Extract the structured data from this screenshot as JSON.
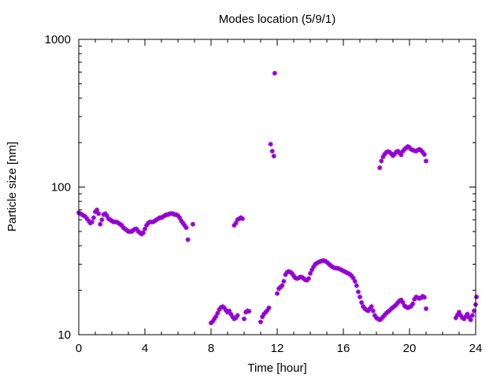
{
  "chart_data": {
    "type": "scatter",
    "title": "Modes location (5/9/1)",
    "xlabel": "Time [hour]",
    "ylabel": "Particle size [nm]",
    "xlim": [
      0,
      24
    ],
    "ylim": [
      10,
      1000
    ],
    "yscale": "log",
    "xticks": [
      "0",
      "4",
      "8",
      "12",
      "16",
      "20",
      "24"
    ],
    "yticks": [
      "10",
      "100",
      "1000"
    ],
    "grid": false,
    "legend": "none",
    "marker_color": "#9400d3",
    "series": [
      {
        "points": [
          [
            0.0,
            67
          ],
          [
            0.1,
            66
          ],
          [
            0.2,
            65
          ],
          [
            0.3,
            64
          ],
          [
            0.4,
            63
          ],
          [
            0.5,
            61
          ],
          [
            0.6,
            59
          ],
          [
            0.7,
            57
          ],
          [
            0.8,
            58
          ],
          [
            0.9,
            62
          ],
          [
            1.0,
            68
          ],
          [
            1.1,
            70
          ],
          [
            1.2,
            66
          ],
          [
            1.3,
            56
          ],
          [
            1.4,
            60
          ],
          [
            1.5,
            65
          ],
          [
            1.6,
            66
          ],
          [
            1.7,
            64
          ],
          [
            1.8,
            61
          ],
          [
            1.9,
            60
          ],
          [
            2.0,
            59
          ],
          [
            2.1,
            58
          ],
          [
            2.2,
            58
          ],
          [
            2.3,
            58
          ],
          [
            2.4,
            57
          ],
          [
            2.5,
            56
          ],
          [
            2.6,
            55
          ],
          [
            2.7,
            53
          ],
          [
            2.8,
            52
          ],
          [
            2.9,
            51
          ],
          [
            3.0,
            50
          ],
          [
            3.1,
            50
          ],
          [
            3.2,
            50
          ],
          [
            3.3,
            51
          ],
          [
            3.4,
            52
          ],
          [
            3.5,
            52
          ],
          [
            3.6,
            50
          ],
          [
            3.7,
            49
          ],
          [
            3.8,
            48
          ],
          [
            3.9,
            49
          ],
          [
            4.0,
            52
          ],
          [
            4.1,
            55
          ],
          [
            4.2,
            57
          ],
          [
            4.3,
            58
          ],
          [
            4.4,
            58
          ],
          [
            4.5,
            58
          ],
          [
            4.6,
            59
          ],
          [
            4.7,
            60
          ],
          [
            4.8,
            61
          ],
          [
            4.9,
            62
          ],
          [
            5.0,
            62
          ],
          [
            5.1,
            63
          ],
          [
            5.2,
            64
          ],
          [
            5.3,
            65
          ],
          [
            5.4,
            65
          ],
          [
            5.5,
            66
          ],
          [
            5.6,
            66
          ],
          [
            5.7,
            66
          ],
          [
            5.8,
            65
          ],
          [
            5.9,
            65
          ],
          [
            6.0,
            64
          ],
          [
            6.1,
            62
          ],
          [
            6.2,
            59
          ],
          [
            6.3,
            57
          ],
          [
            6.4,
            55
          ],
          [
            6.5,
            53
          ],
          [
            6.6,
            44
          ],
          [
            6.9,
            56
          ],
          [
            8.0,
            12
          ],
          [
            8.1,
            12.3
          ],
          [
            8.2,
            12.8
          ],
          [
            8.3,
            13.3
          ],
          [
            8.4,
            14
          ],
          [
            8.5,
            14.8
          ],
          [
            8.6,
            15.3
          ],
          [
            8.7,
            15.5
          ],
          [
            8.8,
            15.2
          ],
          [
            8.9,
            14.6
          ],
          [
            9.0,
            14.2
          ],
          [
            9.1,
            14.5
          ],
          [
            9.2,
            13.8
          ],
          [
            9.3,
            13.2
          ],
          [
            9.4,
            12.8
          ],
          [
            9.5,
            13
          ],
          [
            9.6,
            13.5
          ],
          [
            9.4,
            55
          ],
          [
            9.5,
            57
          ],
          [
            9.6,
            60
          ],
          [
            9.7,
            61
          ],
          [
            9.8,
            62
          ],
          [
            9.9,
            61
          ],
          [
            10.0,
            12.8
          ],
          [
            10.1,
            14.2
          ],
          [
            10.2,
            14.5
          ],
          [
            10.3,
            14.4
          ],
          [
            11.0,
            12.2
          ],
          [
            11.1,
            13.2
          ],
          [
            11.2,
            13.8
          ],
          [
            11.3,
            14.2
          ],
          [
            11.4,
            14.6
          ],
          [
            11.5,
            15.2
          ],
          [
            11.6,
            195
          ],
          [
            11.7,
            175
          ],
          [
            11.8,
            162
          ],
          [
            11.85,
            590
          ],
          [
            12.0,
            19
          ],
          [
            12.1,
            20.5
          ],
          [
            12.2,
            21
          ],
          [
            12.3,
            21.5
          ],
          [
            12.4,
            23
          ],
          [
            12.5,
            25.5
          ],
          [
            12.6,
            26.5
          ],
          [
            12.7,
            26.8
          ],
          [
            12.8,
            26.5
          ],
          [
            12.9,
            26
          ],
          [
            13.0,
            25
          ],
          [
            13.1,
            24.2
          ],
          [
            13.2,
            24
          ],
          [
            13.3,
            24.2
          ],
          [
            13.4,
            24.6
          ],
          [
            13.5,
            24.5
          ],
          [
            13.6,
            24
          ],
          [
            13.7,
            23.5
          ],
          [
            13.8,
            23.4
          ],
          [
            13.9,
            24
          ],
          [
            14.0,
            26
          ],
          [
            14.1,
            27.5
          ],
          [
            14.2,
            28.8
          ],
          [
            14.3,
            30
          ],
          [
            14.4,
            30.5
          ],
          [
            14.5,
            31
          ],
          [
            14.6,
            31.3
          ],
          [
            14.7,
            31.6
          ],
          [
            14.8,
            31.8
          ],
          [
            14.9,
            31.5
          ],
          [
            15.0,
            31
          ],
          [
            15.1,
            30.3
          ],
          [
            15.2,
            29.6
          ],
          [
            15.3,
            29
          ],
          [
            15.4,
            28.5
          ],
          [
            15.5,
            28.3
          ],
          [
            15.6,
            28.2
          ],
          [
            15.7,
            28.1
          ],
          [
            15.8,
            27.8
          ],
          [
            15.9,
            27.4
          ],
          [
            16.0,
            27
          ],
          [
            16.1,
            26.7
          ],
          [
            16.2,
            26.3
          ],
          [
            16.3,
            26
          ],
          [
            16.4,
            25.6
          ],
          [
            16.5,
            25
          ],
          [
            16.6,
            24.2
          ],
          [
            16.7,
            23
          ],
          [
            16.8,
            21.5
          ],
          [
            16.9,
            19.5
          ],
          [
            17.0,
            18
          ],
          [
            17.1,
            16.5
          ],
          [
            17.2,
            15.5
          ],
          [
            17.3,
            15
          ],
          [
            17.4,
            14.7
          ],
          [
            17.5,
            14.5
          ],
          [
            17.6,
            15
          ],
          [
            17.7,
            15.5
          ],
          [
            17.8,
            14.5
          ],
          [
            17.9,
            13.5
          ],
          [
            18.0,
            13
          ],
          [
            18.1,
            12.8
          ],
          [
            18.2,
            12.6
          ],
          [
            18.3,
            12.8
          ],
          [
            18.4,
            13.2
          ],
          [
            18.5,
            13.6
          ],
          [
            18.6,
            14
          ],
          [
            18.7,
            14.3
          ],
          [
            18.8,
            14.6
          ],
          [
            18.9,
            15
          ],
          [
            19.0,
            15.3
          ],
          [
            19.1,
            15.6
          ],
          [
            19.2,
            16
          ],
          [
            19.3,
            16.5
          ],
          [
            19.4,
            17
          ],
          [
            19.5,
            17.2
          ],
          [
            19.6,
            16.5
          ],
          [
            19.7,
            15.7
          ],
          [
            19.8,
            15.4
          ],
          [
            19.9,
            15.2
          ],
          [
            20.0,
            15.4
          ],
          [
            20.1,
            15.6
          ],
          [
            20.2,
            16.2
          ],
          [
            20.3,
            17.4
          ],
          [
            20.4,
            18
          ],
          [
            20.5,
            17.8
          ],
          [
            20.6,
            17.6
          ],
          [
            20.7,
            17.8
          ],
          [
            20.8,
            18.2
          ],
          [
            20.9,
            17.9
          ],
          [
            21.0,
            15
          ],
          [
            18.2,
            135
          ],
          [
            18.3,
            150
          ],
          [
            18.4,
            160
          ],
          [
            18.5,
            167
          ],
          [
            18.6,
            172
          ],
          [
            18.7,
            174
          ],
          [
            18.8,
            172
          ],
          [
            18.9,
            168
          ],
          [
            19.0,
            163
          ],
          [
            19.1,
            167
          ],
          [
            19.2,
            173
          ],
          [
            19.3,
            175
          ],
          [
            19.4,
            170
          ],
          [
            19.5,
            165
          ],
          [
            19.6,
            175
          ],
          [
            19.7,
            180
          ],
          [
            19.8,
            184
          ],
          [
            19.9,
            188
          ],
          [
            20.0,
            185
          ],
          [
            20.1,
            180
          ],
          [
            20.2,
            178
          ],
          [
            20.3,
            176
          ],
          [
            20.4,
            175
          ],
          [
            20.5,
            178
          ],
          [
            20.6,
            180
          ],
          [
            20.7,
            177
          ],
          [
            20.8,
            172
          ],
          [
            20.9,
            166
          ],
          [
            21.0,
            150
          ],
          [
            22.8,
            13
          ],
          [
            22.9,
            13.6
          ],
          [
            23.0,
            14.2
          ],
          [
            23.1,
            13.5
          ],
          [
            23.2,
            13
          ],
          [
            23.3,
            12.8
          ],
          [
            23.4,
            13.3
          ],
          [
            23.5,
            13.8
          ],
          [
            23.6,
            13.1
          ],
          [
            23.7,
            12.6
          ],
          [
            23.8,
            13.5
          ],
          [
            23.9,
            14.5
          ],
          [
            24.0,
            16
          ],
          [
            24.05,
            18
          ]
        ]
      }
    ]
  }
}
